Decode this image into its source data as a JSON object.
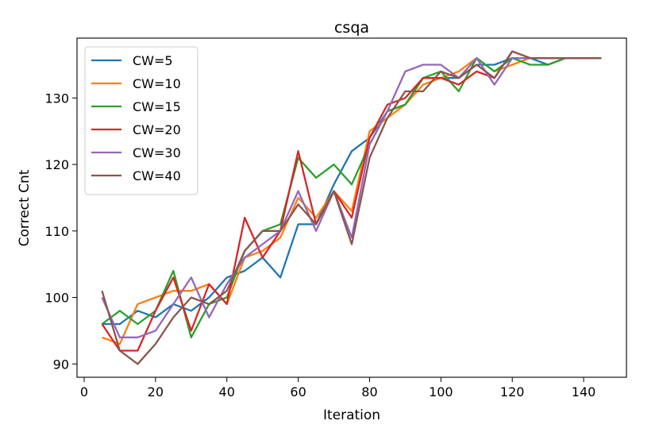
{
  "chart_data": {
    "type": "line",
    "title": "csqa",
    "xlabel": "Iteration",
    "ylabel": "Correct Cnt",
    "xlim": [
      -2,
      152
    ],
    "ylim": [
      88,
      139
    ],
    "xticks": [
      0,
      20,
      40,
      60,
      80,
      100,
      120,
      140
    ],
    "yticks": [
      90,
      100,
      110,
      120,
      130
    ],
    "grid": false,
    "legend_position": "top-left",
    "x": [
      5,
      10,
      15,
      20,
      25,
      30,
      35,
      40,
      45,
      50,
      55,
      60,
      65,
      70,
      75,
      80,
      85,
      90,
      95,
      100,
      105,
      110,
      115,
      120,
      125,
      130,
      135,
      140,
      145
    ],
    "series": [
      {
        "name": "CW=5",
        "color": "#1f77b4",
        "values": [
          96,
          96,
          98,
          97,
          99,
          98,
          100,
          103,
          104,
          106,
          103,
          111,
          111,
          117,
          122,
          124,
          128,
          129,
          133,
          133,
          133,
          135,
          135,
          136,
          136,
          135,
          136,
          136,
          136
        ]
      },
      {
        "name": "CW=10",
        "color": "#ff7f0e",
        "values": [
          94,
          93,
          99,
          100,
          101,
          101,
          102,
          99,
          106,
          107,
          109,
          115,
          112,
          116,
          113,
          125,
          127,
          129,
          132,
          133,
          134,
          136,
          134,
          135,
          136,
          136,
          136,
          136,
          136
        ]
      },
      {
        "name": "CW=15",
        "color": "#2ca02c",
        "values": [
          96,
          98,
          96,
          98,
          104,
          94,
          99,
          100,
          107,
          110,
          111,
          121,
          118,
          120,
          117,
          123,
          128,
          129,
          133,
          134,
          131,
          136,
          134,
          136,
          135,
          135,
          136,
          136,
          136
        ]
      },
      {
        "name": "CW=20",
        "color": "#d62728",
        "values": [
          96,
          92,
          92,
          98,
          103,
          95,
          102,
          99,
          112,
          106,
          110,
          122,
          111,
          116,
          112,
          124,
          129,
          130,
          133,
          133,
          132,
          134,
          133,
          137,
          136,
          136,
          136,
          136,
          136
        ]
      },
      {
        "name": "CW=30",
        "color": "#9467bd",
        "values": [
          100,
          94,
          94,
          95,
          99,
          103,
          97,
          102,
          106,
          108,
          110,
          116,
          110,
          116,
          109,
          123,
          128,
          134,
          135,
          135,
          133,
          136,
          132,
          136,
          136,
          136,
          136,
          136,
          136
        ]
      },
      {
        "name": "CW=40",
        "color": "#8c564b",
        "values": [
          101,
          92,
          90,
          93,
          97,
          100,
          99,
          101,
          107,
          110,
          110,
          114,
          111,
          116,
          108,
          121,
          127,
          131,
          131,
          134,
          133,
          135,
          133,
          137,
          136,
          136,
          136,
          136,
          136
        ]
      }
    ]
  }
}
